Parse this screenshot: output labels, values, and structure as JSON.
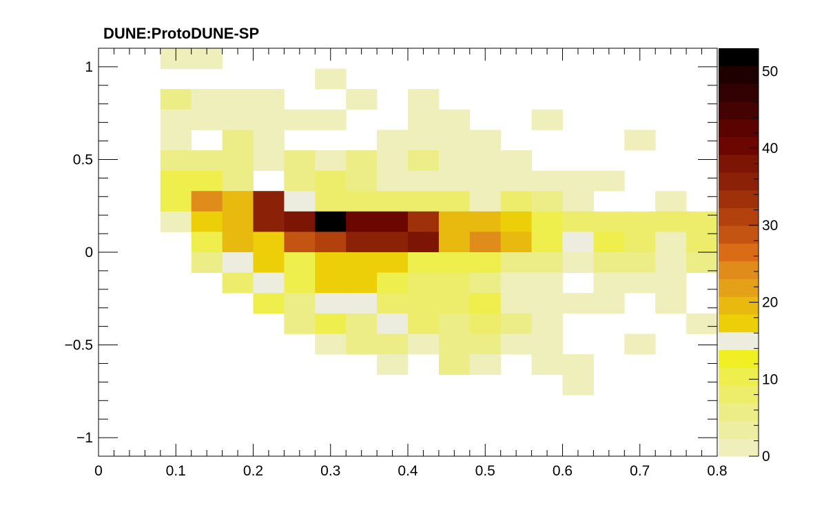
{
  "chart_data": {
    "type": "heatmap",
    "title": "DUNE:ProtoDUNE-SP",
    "xlabel": "",
    "ylabel": "",
    "xlim": [
      0,
      0.8
    ],
    "ylim": [
      -1.1,
      1.1
    ],
    "x_bins": {
      "low": 0,
      "width": 0.04,
      "count": 20
    },
    "y_bins": {
      "low": -1.1,
      "width": 0.11,
      "count": 20
    },
    "x_tick_labels": [
      "0",
      "0.1",
      "0.2",
      "0.3",
      "0.4",
      "0.5",
      "0.6",
      "0.7",
      "0.8"
    ],
    "y_tick_labels": [
      "1",
      "0.5",
      "0",
      "−0.5",
      "−1"
    ],
    "colorbar": {
      "min": 0,
      "max": 53,
      "tick_labels": [
        "0",
        "10",
        "20",
        "30",
        "40",
        "50"
      ],
      "palette": [
        "#efefbb",
        "#eeeea1",
        "#eded88",
        "#eded6b",
        "#eeee4d",
        "#efef23",
        "#ededdf",
        "#eccf08",
        "#e8b90f",
        "#e4a117",
        "#df8c1b",
        "#d96c15",
        "#c45412",
        "#b2410d",
        "#9e300a",
        "#8b2208",
        "#7c1504",
        "#6b0700",
        "#5a0300",
        "#440202",
        "#320101",
        "#1e0000",
        "#000000"
      ]
    },
    "cells": [
      {
        "col": 2,
        "row": 19,
        "v": 2
      },
      {
        "col": 3,
        "row": 19,
        "v": 2
      },
      {
        "col": 7,
        "row": 18,
        "v": 2
      },
      {
        "col": 2,
        "row": 17,
        "v": 5
      },
      {
        "col": 3,
        "row": 17,
        "v": 2
      },
      {
        "col": 4,
        "row": 17,
        "v": 2
      },
      {
        "col": 5,
        "row": 17,
        "v": 2
      },
      {
        "col": 8,
        "row": 17,
        "v": 2
      },
      {
        "col": 10,
        "row": 17,
        "v": 2
      },
      {
        "col": 2,
        "row": 16,
        "v": 2
      },
      {
        "col": 3,
        "row": 16,
        "v": 2
      },
      {
        "col": 4,
        "row": 16,
        "v": 2
      },
      {
        "col": 5,
        "row": 16,
        "v": 2
      },
      {
        "col": 6,
        "row": 16,
        "v": 2
      },
      {
        "col": 7,
        "row": 16,
        "v": 2
      },
      {
        "col": 10,
        "row": 16,
        "v": 2
      },
      {
        "col": 11,
        "row": 16,
        "v": 2
      },
      {
        "col": 14,
        "row": 16,
        "v": 2
      },
      {
        "col": 2,
        "row": 15,
        "v": 2
      },
      {
        "col": 4,
        "row": 15,
        "v": 5
      },
      {
        "col": 5,
        "row": 15,
        "v": 2
      },
      {
        "col": 9,
        "row": 15,
        "v": 2
      },
      {
        "col": 10,
        "row": 15,
        "v": 2
      },
      {
        "col": 11,
        "row": 15,
        "v": 2
      },
      {
        "col": 12,
        "row": 15,
        "v": 2
      },
      {
        "col": 17,
        "row": 15,
        "v": 2
      },
      {
        "col": 2,
        "row": 14,
        "v": 5
      },
      {
        "col": 3,
        "row": 14,
        "v": 5
      },
      {
        "col": 4,
        "row": 14,
        "v": 5
      },
      {
        "col": 5,
        "row": 14,
        "v": 2
      },
      {
        "col": 6,
        "row": 14,
        "v": 5
      },
      {
        "col": 7,
        "row": 14,
        "v": 2
      },
      {
        "col": 8,
        "row": 14,
        "v": 5
      },
      {
        "col": 9,
        "row": 14,
        "v": 2
      },
      {
        "col": 10,
        "row": 14,
        "v": 5
      },
      {
        "col": 11,
        "row": 14,
        "v": 2
      },
      {
        "col": 12,
        "row": 14,
        "v": 2
      },
      {
        "col": 13,
        "row": 14,
        "v": 2
      },
      {
        "col": 2,
        "row": 13,
        "v": 10
      },
      {
        "col": 3,
        "row": 13,
        "v": 10
      },
      {
        "col": 4,
        "row": 13,
        "v": 5
      },
      {
        "col": 6,
        "row": 13,
        "v": 5
      },
      {
        "col": 7,
        "row": 13,
        "v": 8
      },
      {
        "col": 8,
        "row": 13,
        "v": 5
      },
      {
        "col": 9,
        "row": 13,
        "v": 2
      },
      {
        "col": 10,
        "row": 13,
        "v": 2
      },
      {
        "col": 11,
        "row": 13,
        "v": 2
      },
      {
        "col": 12,
        "row": 13,
        "v": 2
      },
      {
        "col": 13,
        "row": 13,
        "v": 2
      },
      {
        "col": 14,
        "row": 13,
        "v": 2
      },
      {
        "col": 15,
        "row": 13,
        "v": 2
      },
      {
        "col": 16,
        "row": 13,
        "v": 2
      },
      {
        "col": 2,
        "row": 12,
        "v": 10
      },
      {
        "col": 3,
        "row": 12,
        "v": 25
      },
      {
        "col": 4,
        "row": 12,
        "v": 20
      },
      {
        "col": 5,
        "row": 12,
        "v": 35
      },
      {
        "col": 6,
        "row": 12,
        "v": 15
      },
      {
        "col": 7,
        "row": 12,
        "v": 8
      },
      {
        "col": 8,
        "row": 12,
        "v": 8
      },
      {
        "col": 9,
        "row": 12,
        "v": 8
      },
      {
        "col": 10,
        "row": 12,
        "v": 8
      },
      {
        "col": 11,
        "row": 12,
        "v": 8
      },
      {
        "col": 12,
        "row": 12,
        "v": 2
      },
      {
        "col": 13,
        "row": 12,
        "v": 8
      },
      {
        "col": 14,
        "row": 12,
        "v": 5
      },
      {
        "col": 15,
        "row": 12,
        "v": 2
      },
      {
        "col": 18,
        "row": 12,
        "v": 2
      },
      {
        "col": 2,
        "row": 11,
        "v": 2
      },
      {
        "col": 3,
        "row": 11,
        "v": 18
      },
      {
        "col": 4,
        "row": 11,
        "v": 20
      },
      {
        "col": 5,
        "row": 11,
        "v": 35
      },
      {
        "col": 6,
        "row": 11,
        "v": 37
      },
      {
        "col": 7,
        "row": 11,
        "v": 53
      },
      {
        "col": 8,
        "row": 11,
        "v": 40
      },
      {
        "col": 9,
        "row": 11,
        "v": 40
      },
      {
        "col": 10,
        "row": 11,
        "v": 33
      },
      {
        "col": 11,
        "row": 11,
        "v": 20
      },
      {
        "col": 12,
        "row": 11,
        "v": 20
      },
      {
        "col": 13,
        "row": 11,
        "v": 18
      },
      {
        "col": 14,
        "row": 11,
        "v": 10
      },
      {
        "col": 15,
        "row": 11,
        "v": 8
      },
      {
        "col": 16,
        "row": 11,
        "v": 8
      },
      {
        "col": 17,
        "row": 11,
        "v": 8
      },
      {
        "col": 18,
        "row": 11,
        "v": 8
      },
      {
        "col": 19,
        "row": 11,
        "v": 8
      },
      {
        "col": 3,
        "row": 10,
        "v": 10
      },
      {
        "col": 4,
        "row": 10,
        "v": 20
      },
      {
        "col": 5,
        "row": 10,
        "v": 18
      },
      {
        "col": 6,
        "row": 10,
        "v": 28
      },
      {
        "col": 7,
        "row": 10,
        "v": 30
      },
      {
        "col": 8,
        "row": 10,
        "v": 35
      },
      {
        "col": 9,
        "row": 10,
        "v": 35
      },
      {
        "col": 10,
        "row": 10,
        "v": 37
      },
      {
        "col": 11,
        "row": 10,
        "v": 20
      },
      {
        "col": 12,
        "row": 10,
        "v": 25
      },
      {
        "col": 13,
        "row": 10,
        "v": 20
      },
      {
        "col": 14,
        "row": 10,
        "v": 10
      },
      {
        "col": 15,
        "row": 10,
        "v": 15
      },
      {
        "col": 16,
        "row": 10,
        "v": 10
      },
      {
        "col": 17,
        "row": 10,
        "v": 8
      },
      {
        "col": 18,
        "row": 10,
        "v": 2
      },
      {
        "col": 19,
        "row": 10,
        "v": 8
      },
      {
        "col": 3,
        "row": 9,
        "v": 5
      },
      {
        "col": 4,
        "row": 9,
        "v": 15
      },
      {
        "col": 5,
        "row": 9,
        "v": 18
      },
      {
        "col": 6,
        "row": 9,
        "v": 10
      },
      {
        "col": 7,
        "row": 9,
        "v": 18
      },
      {
        "col": 8,
        "row": 9,
        "v": 18
      },
      {
        "col": 9,
        "row": 9,
        "v": 18
      },
      {
        "col": 10,
        "row": 9,
        "v": 10
      },
      {
        "col": 11,
        "row": 9,
        "v": 10
      },
      {
        "col": 12,
        "row": 9,
        "v": 10
      },
      {
        "col": 13,
        "row": 9,
        "v": 5
      },
      {
        "col": 14,
        "row": 9,
        "v": 5
      },
      {
        "col": 15,
        "row": 9,
        "v": 2
      },
      {
        "col": 16,
        "row": 9,
        "v": 5
      },
      {
        "col": 17,
        "row": 9,
        "v": 5
      },
      {
        "col": 18,
        "row": 9,
        "v": 2
      },
      {
        "col": 19,
        "row": 9,
        "v": 5
      },
      {
        "col": 4,
        "row": 8,
        "v": 8
      },
      {
        "col": 5,
        "row": 8,
        "v": 15
      },
      {
        "col": 6,
        "row": 8,
        "v": 10
      },
      {
        "col": 7,
        "row": 8,
        "v": 18
      },
      {
        "col": 8,
        "row": 8,
        "v": 18
      },
      {
        "col": 9,
        "row": 8,
        "v": 10
      },
      {
        "col": 10,
        "row": 8,
        "v": 8
      },
      {
        "col": 11,
        "row": 8,
        "v": 8
      },
      {
        "col": 12,
        "row": 8,
        "v": 5
      },
      {
        "col": 13,
        "row": 8,
        "v": 2
      },
      {
        "col": 14,
        "row": 8,
        "v": 2
      },
      {
        "col": 16,
        "row": 8,
        "v": 2
      },
      {
        "col": 17,
        "row": 8,
        "v": 2
      },
      {
        "col": 18,
        "row": 8,
        "v": 2
      },
      {
        "col": 5,
        "row": 7,
        "v": 10
      },
      {
        "col": 6,
        "row": 7,
        "v": 5
      },
      {
        "col": 7,
        "row": 7,
        "v": 15
      },
      {
        "col": 8,
        "row": 7,
        "v": 15
      },
      {
        "col": 9,
        "row": 7,
        "v": 8
      },
      {
        "col": 10,
        "row": 7,
        "v": 8
      },
      {
        "col": 11,
        "row": 7,
        "v": 8
      },
      {
        "col": 12,
        "row": 7,
        "v": 10
      },
      {
        "col": 13,
        "row": 7,
        "v": 2
      },
      {
        "col": 14,
        "row": 7,
        "v": 2
      },
      {
        "col": 15,
        "row": 7,
        "v": 2
      },
      {
        "col": 16,
        "row": 7,
        "v": 2
      },
      {
        "col": 18,
        "row": 7,
        "v": 2
      },
      {
        "col": 6,
        "row": 6,
        "v": 5
      },
      {
        "col": 7,
        "row": 6,
        "v": 10
      },
      {
        "col": 8,
        "row": 6,
        "v": 5
      },
      {
        "col": 9,
        "row": 6,
        "v": 15
      },
      {
        "col": 10,
        "row": 6,
        "v": 8
      },
      {
        "col": 11,
        "row": 6,
        "v": 5
      },
      {
        "col": 12,
        "row": 6,
        "v": 8
      },
      {
        "col": 13,
        "row": 6,
        "v": 5
      },
      {
        "col": 14,
        "row": 6,
        "v": 2
      },
      {
        "col": 19,
        "row": 6,
        "v": 2
      },
      {
        "col": 7,
        "row": 5,
        "v": 2
      },
      {
        "col": 8,
        "row": 5,
        "v": 5
      },
      {
        "col": 9,
        "row": 5,
        "v": 5
      },
      {
        "col": 10,
        "row": 5,
        "v": 2
      },
      {
        "col": 11,
        "row": 5,
        "v": 5
      },
      {
        "col": 12,
        "row": 5,
        "v": 5
      },
      {
        "col": 13,
        "row": 5,
        "v": 2
      },
      {
        "col": 14,
        "row": 5,
        "v": 2
      },
      {
        "col": 17,
        "row": 5,
        "v": 2
      },
      {
        "col": 9,
        "row": 4,
        "v": 2
      },
      {
        "col": 11,
        "row": 4,
        "v": 5
      },
      {
        "col": 12,
        "row": 4,
        "v": 2
      },
      {
        "col": 14,
        "row": 4,
        "v": 2
      },
      {
        "col": 15,
        "row": 4,
        "v": 2
      },
      {
        "col": 15,
        "row": 3,
        "v": 2
      }
    ]
  }
}
